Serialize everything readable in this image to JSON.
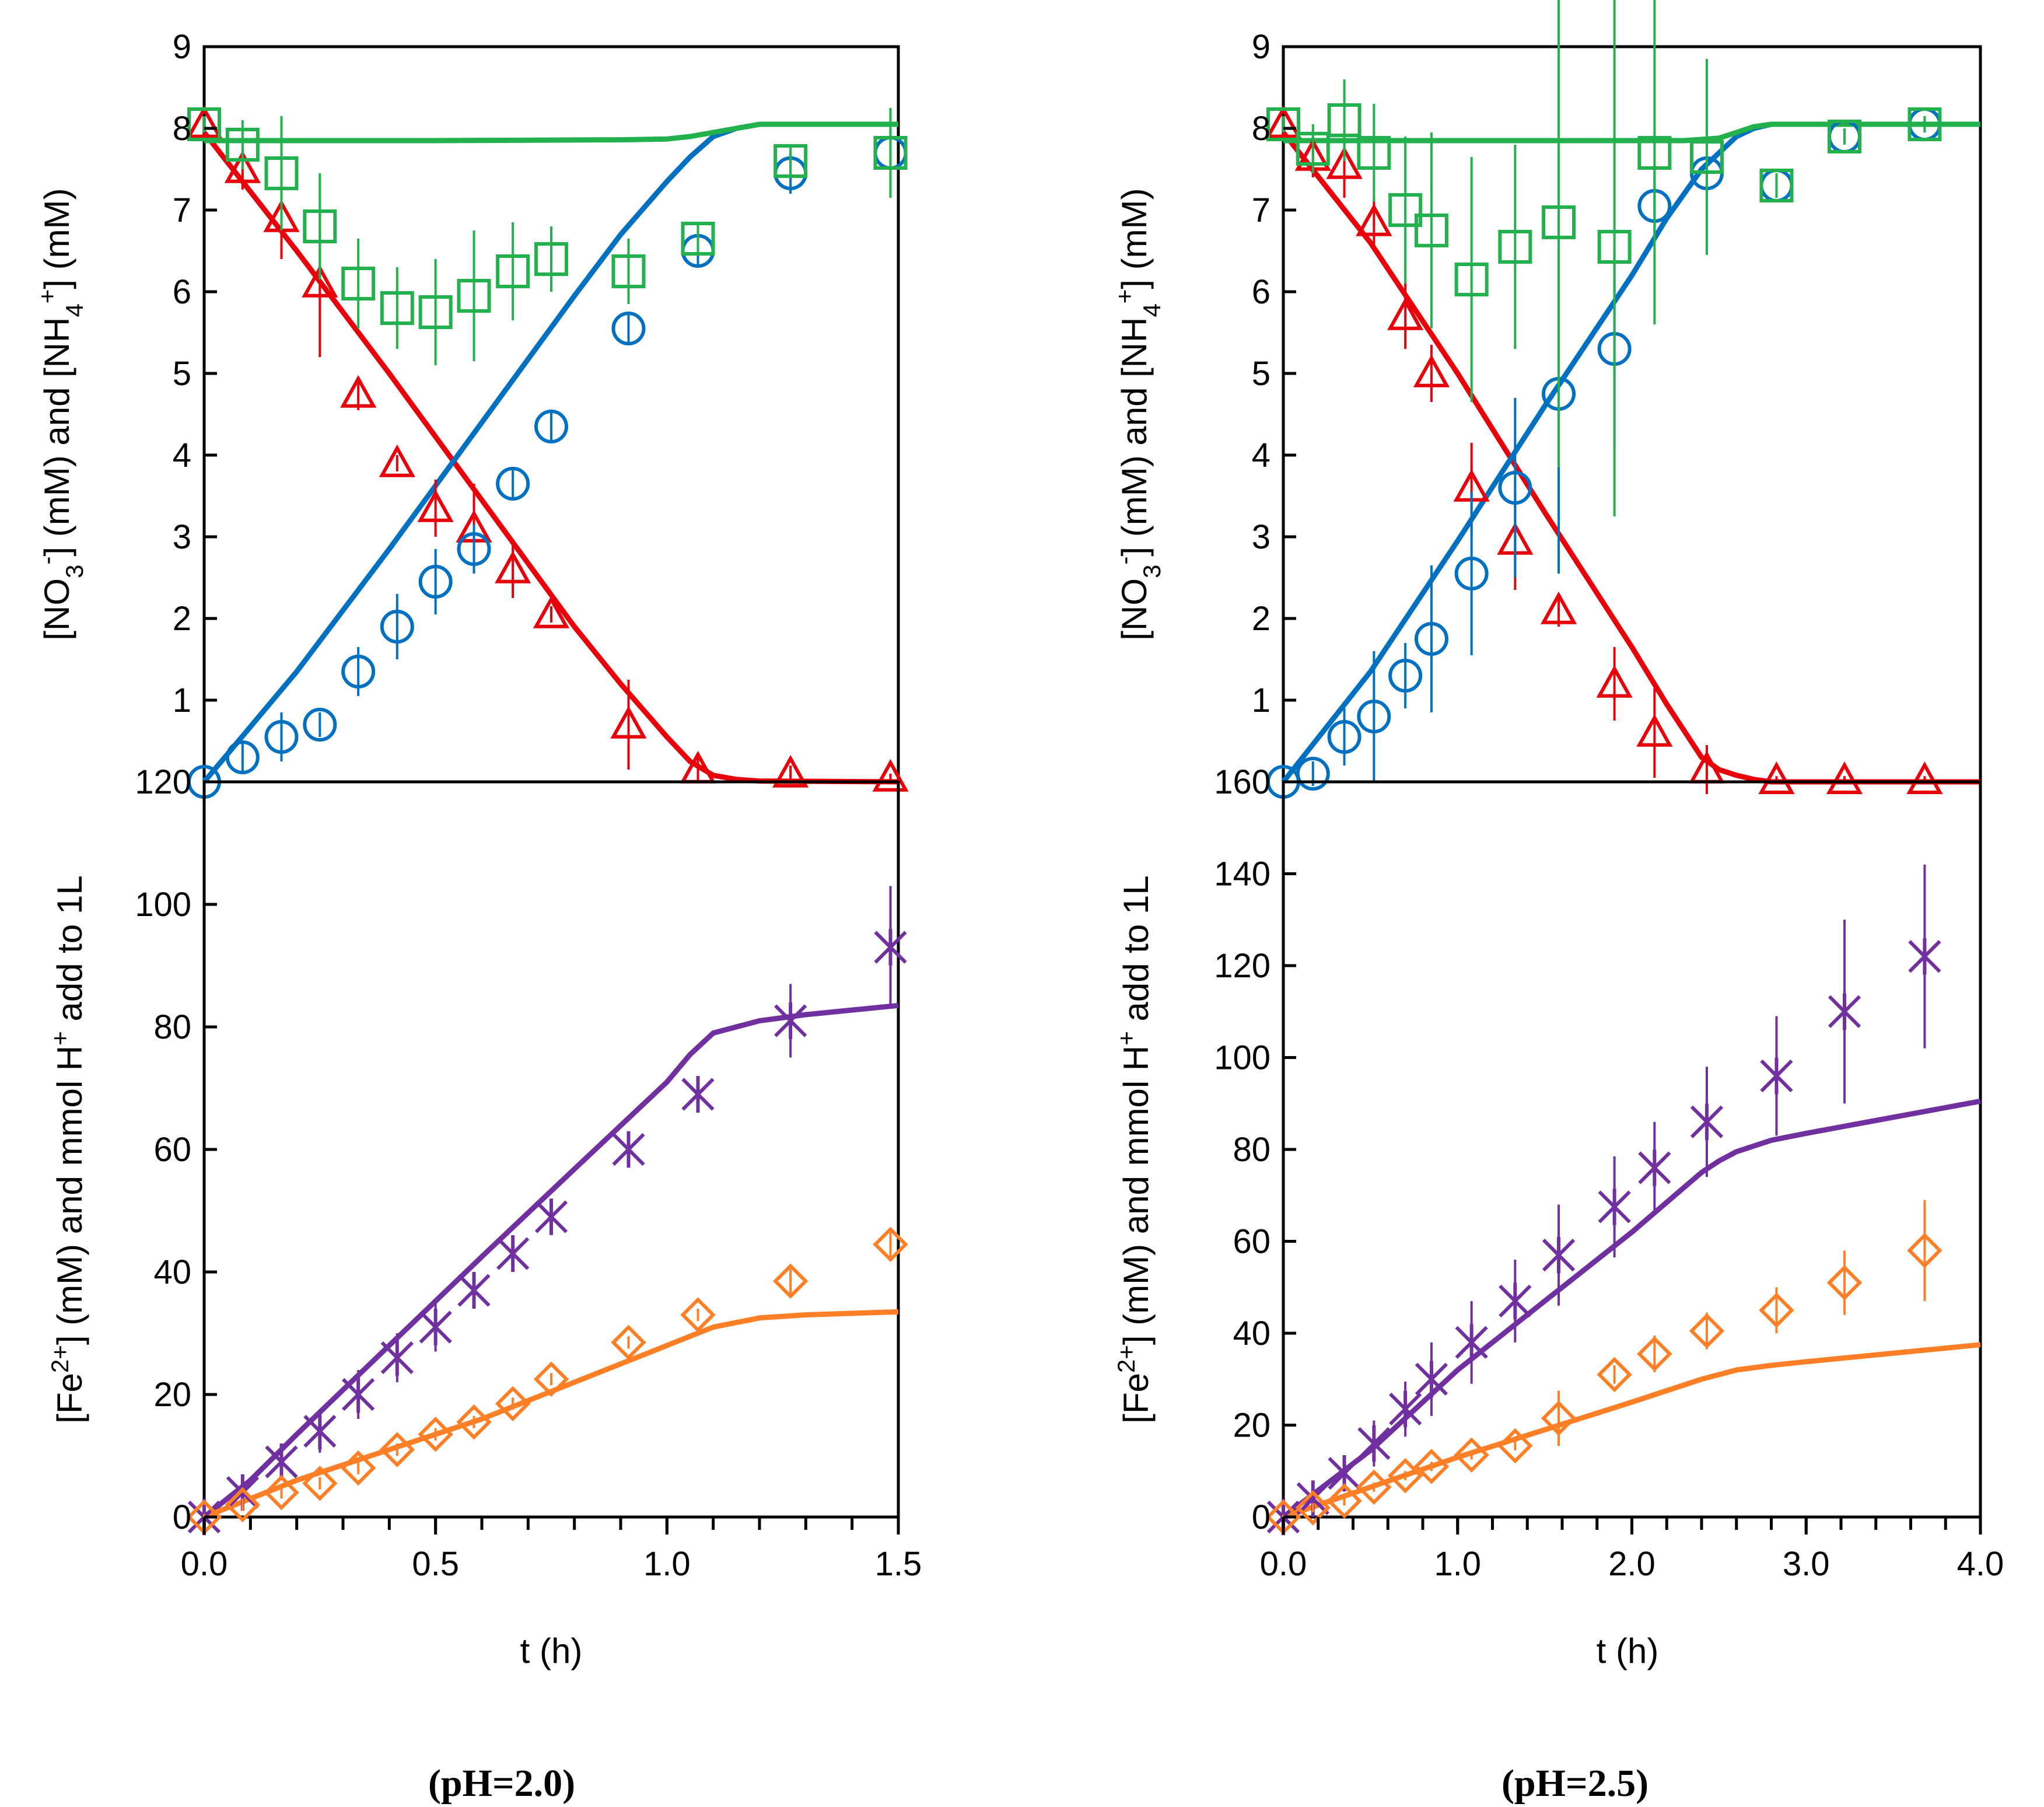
{
  "chart_data": [
    {
      "id": "left-top",
      "type": "scatter",
      "panel": "pH=2.0 nitrate and ammonium",
      "ylabel": {
        "pre": "[NO",
        "sub1": "3",
        "sup1": "-",
        "mid": "] (mM) and [NH",
        "sub2": "4",
        "sup2": "+",
        "post": "] (mM)"
      },
      "xlim": [
        0,
        1.5
      ],
      "ylim": [
        0,
        9
      ],
      "yticks": [
        1,
        2,
        3,
        4,
        5,
        6,
        7,
        8,
        9
      ],
      "series": [
        {
          "name": "NO3- measured",
          "marker": "triangle",
          "color": "#e8000b",
          "x": [
            0,
            0.083,
            0.167,
            0.25,
            0.333,
            0.417,
            0.5,
            0.583,
            0.667,
            0.75,
            0.917,
            1.067,
            1.267,
            1.483
          ],
          "y": [
            8.05,
            7.5,
            6.9,
            6.1,
            4.75,
            3.9,
            3.35,
            3.1,
            2.6,
            2.05,
            0.7,
            0.15,
            0.1,
            0.05
          ],
          "err": [
            0.1,
            0.25,
            0.5,
            0.9,
            0.2,
            0.1,
            0.35,
            0.55,
            0.35,
            0.1,
            0.55,
            0.15,
            0.1,
            0.05
          ]
        },
        {
          "name": "NH4+ measured",
          "marker": "circle",
          "color": "#0070c0",
          "x": [
            0,
            0.083,
            0.167,
            0.25,
            0.333,
            0.417,
            0.5,
            0.583,
            0.667,
            0.75,
            0.917,
            1.067,
            1.267,
            1.483
          ],
          "y": [
            0,
            0.3,
            0.55,
            0.7,
            1.35,
            1.9,
            2.45,
            2.85,
            3.65,
            4.35,
            5.55,
            6.5,
            7.45,
            7.7
          ],
          "err": [
            0.05,
            0.2,
            0.3,
            0.15,
            0.3,
            0.4,
            0.4,
            0.3,
            0.2,
            0.2,
            0.2,
            0.2,
            0.25,
            0.2
          ]
        },
        {
          "name": "Total N measured",
          "marker": "square",
          "color": "#22b14c",
          "x": [
            0,
            0.083,
            0.167,
            0.25,
            0.333,
            0.417,
            0.5,
            0.583,
            0.667,
            0.75,
            0.917,
            1.067,
            1.267,
            1.483
          ],
          "y": [
            8.05,
            7.8,
            7.45,
            6.8,
            6.1,
            5.8,
            5.75,
            5.95,
            6.25,
            6.4,
            6.25,
            6.65,
            7.6,
            7.7
          ],
          "err": [
            0.1,
            0.3,
            0.7,
            0.65,
            0.55,
            0.5,
            0.65,
            0.8,
            0.6,
            0.4,
            0.4,
            0.2,
            0.2,
            0.55
          ]
        }
      ],
      "model_lines": [
        {
          "name": "NO3- model",
          "color": "#e8000b",
          "x": [
            0,
            0.2,
            0.4,
            0.6,
            0.8,
            0.9,
            1.0,
            1.05,
            1.1,
            1.15,
            1.2,
            1.5
          ],
          "y": [
            7.95,
            6.5,
            5.0,
            3.45,
            1.9,
            1.2,
            0.55,
            0.25,
            0.08,
            0.03,
            0.01,
            0.0
          ]
        },
        {
          "name": "NH4+ model",
          "color": "#0070c0",
          "x": [
            0,
            0.2,
            0.4,
            0.6,
            0.8,
            0.9,
            1.0,
            1.05,
            1.1,
            1.15,
            1.2,
            1.5
          ],
          "y": [
            0.0,
            1.35,
            2.85,
            4.4,
            5.95,
            6.7,
            7.35,
            7.65,
            7.9,
            8.0,
            8.05,
            8.05
          ]
        },
        {
          "name": "Total N model",
          "color": "#22b14c",
          "x": [
            0,
            0.5,
            0.9,
            1.0,
            1.05,
            1.1,
            1.15,
            1.2,
            1.3,
            1.5
          ],
          "y": [
            7.85,
            7.85,
            7.86,
            7.87,
            7.9,
            7.95,
            8.0,
            8.05,
            8.05,
            8.05
          ]
        }
      ]
    },
    {
      "id": "left-bottom",
      "type": "scatter",
      "panel": "pH=2.0 iron and acid",
      "ylabel": {
        "pre": "[Fe",
        "sup1": "2+",
        "mid": "] (mM) and mmol H",
        "sup2": "+",
        "post": " add to 1L"
      },
      "xlabel": "t (h)",
      "caption": "(pH=2.0)",
      "xlim": [
        0,
        1.5
      ],
      "ylim": [
        0,
        120
      ],
      "xticks": [
        0,
        0.5,
        1.0,
        1.5
      ],
      "xticklabels": [
        "0.0",
        "0.5",
        "1.0",
        "1.5"
      ],
      "yticks": [
        0,
        20,
        40,
        60,
        80,
        100,
        120
      ],
      "series": [
        {
          "name": "H+ added measured",
          "marker": "star",
          "color": "#7030a0",
          "x": [
            0,
            0.083,
            0.167,
            0.25,
            0.333,
            0.417,
            0.5,
            0.583,
            0.667,
            0.75,
            0.917,
            1.067,
            1.267,
            1.483
          ],
          "y": [
            0,
            4,
            9,
            14,
            20,
            26,
            31,
            37,
            43,
            49,
            60,
            69,
            81,
            93
          ],
          "err": [
            1,
            2,
            3,
            3.5,
            4,
            4,
            4,
            3,
            3,
            2,
            2,
            3,
            6,
            10
          ]
        },
        {
          "name": "Fe2+ measured",
          "marker": "diamond",
          "color": "#ff7f27",
          "x": [
            0,
            0.083,
            0.167,
            0.25,
            0.333,
            0.417,
            0.5,
            0.583,
            0.667,
            0.75,
            0.917,
            1.067,
            1.267,
            1.483
          ],
          "y": [
            0,
            2,
            4,
            5.5,
            8,
            11,
            13.5,
            15.5,
            18.5,
            22.5,
            28.5,
            33,
            38.5,
            44.5
          ],
          "err": [
            0.5,
            1,
            1,
            1,
            1,
            1,
            1,
            1,
            1,
            1,
            1,
            1,
            2,
            2
          ]
        }
      ],
      "model_lines": [
        {
          "name": "H+ model",
          "color": "#7030a0",
          "x": [
            0,
            0.1,
            0.2,
            0.4,
            0.6,
            0.8,
            1.0,
            1.05,
            1.1,
            1.2,
            1.3,
            1.5
          ],
          "y": [
            0,
            6,
            13.5,
            28,
            42.5,
            56.8,
            71,
            75.5,
            79,
            81,
            82,
            83.5
          ]
        },
        {
          "name": "Fe2+ model",
          "color": "#ff7f27",
          "x": [
            0,
            0.1,
            0.2,
            0.4,
            0.6,
            0.8,
            1.0,
            1.1,
            1.2,
            1.3,
            1.5
          ],
          "y": [
            0,
            3,
            6,
            11,
            16,
            22,
            28,
            31,
            32.5,
            33,
            33.5
          ]
        }
      ]
    },
    {
      "id": "right-top",
      "type": "scatter",
      "panel": "pH=2.5 nitrate and ammonium",
      "ylabel": {
        "pre": "[NO",
        "sub1": "3",
        "sup1": "-",
        "mid": "] (mM) and [NH",
        "sub2": "4",
        "sup2": "+",
        "post": "] (mM)"
      },
      "xlim": [
        0,
        4.0
      ],
      "ylim": [
        0,
        9
      ],
      "yticks": [
        1,
        2,
        3,
        4,
        5,
        6,
        7,
        8,
        9
      ],
      "series": [
        {
          "name": "NO3- measured",
          "marker": "triangle",
          "color": "#e8000b",
          "x": [
            0,
            0.17,
            0.35,
            0.52,
            0.7,
            0.85,
            1.08,
            1.33,
            1.58,
            1.9,
            2.13,
            2.43,
            2.83,
            3.22,
            3.68
          ],
          "y": [
            8.05,
            7.65,
            7.55,
            6.85,
            5.7,
            5.0,
            3.6,
            2.95,
            2.1,
            1.2,
            0.6,
            0.15,
            0.02,
            0.02,
            0.02
          ],
          "err": [
            0.1,
            0.25,
            0.4,
            0.3,
            0.4,
            0.35,
            0.55,
            0.6,
            0.2,
            0.45,
            0.55,
            0.3,
            0.05,
            0.05,
            0.05
          ]
        },
        {
          "name": "NH4+ measured",
          "marker": "circle",
          "color": "#0070c0",
          "x": [
            0,
            0.17,
            0.35,
            0.52,
            0.7,
            0.85,
            1.08,
            1.33,
            1.58,
            1.9,
            2.13,
            2.43,
            2.83,
            3.22,
            3.68
          ],
          "y": [
            0,
            0.1,
            0.55,
            0.8,
            1.3,
            1.75,
            2.55,
            3.6,
            4.75,
            5.3,
            7.05,
            7.45,
            7.3,
            7.9,
            8.05
          ],
          "err": [
            0.05,
            0.15,
            0.35,
            0.8,
            0.4,
            0.9,
            1.0,
            1.1,
            2.2,
            1.2,
            0.4,
            0.3,
            0.15,
            0.1,
            0.1
          ]
        },
        {
          "name": "Total N measured",
          "marker": "square",
          "color": "#22b14c",
          "x": [
            0,
            0.17,
            0.35,
            0.52,
            0.7,
            0.85,
            1.08,
            1.33,
            1.58,
            1.9,
            2.13,
            2.43,
            2.83,
            3.22,
            3.68
          ],
          "y": [
            8.05,
            7.75,
            8.1,
            7.7,
            7.0,
            6.75,
            6.15,
            6.55,
            6.85,
            6.55,
            7.7,
            7.65,
            7.3,
            7.9,
            8.05
          ],
          "err": [
            0.1,
            0.3,
            0.5,
            0.6,
            0.9,
            1.2,
            1.5,
            1.25,
            3.0,
            3.3,
            2.1,
            1.2,
            0.15,
            0.1,
            0.1
          ]
        }
      ],
      "model_lines": [
        {
          "name": "NO3- model",
          "color": "#e8000b",
          "x": [
            0,
            0.5,
            1.0,
            1.5,
            2.0,
            2.2,
            2.4,
            2.5,
            2.6,
            2.7,
            2.8,
            4.0
          ],
          "y": [
            7.95,
            6.6,
            5.0,
            3.3,
            1.65,
            0.95,
            0.3,
            0.15,
            0.08,
            0.03,
            0.0,
            0.0
          ]
        },
        {
          "name": "NH4+ model",
          "color": "#0070c0",
          "x": [
            0,
            0.5,
            1.0,
            1.5,
            2.0,
            2.2,
            2.4,
            2.5,
            2.6,
            2.7,
            2.8,
            4.0
          ],
          "y": [
            0.0,
            1.35,
            2.95,
            4.6,
            6.2,
            6.9,
            7.5,
            7.7,
            7.9,
            8.0,
            8.05,
            8.05
          ]
        },
        {
          "name": "Total N model",
          "color": "#22b14c",
          "x": [
            0,
            1.0,
            2.0,
            2.3,
            2.5,
            2.6,
            2.7,
            2.8,
            3.0,
            4.0
          ],
          "y": [
            7.85,
            7.85,
            7.85,
            7.85,
            7.88,
            7.95,
            8.02,
            8.05,
            8.05,
            8.05
          ]
        }
      ]
    },
    {
      "id": "right-bottom",
      "type": "scatter",
      "panel": "pH=2.5 iron and acid",
      "ylabel": {
        "pre": "[Fe",
        "sup1": "2+",
        "mid": "] (mM) and mmol H",
        "sup2": "+",
        "post": " add to 1L"
      },
      "xlabel": "t (h)",
      "caption": "(pH=2.5)",
      "xlim": [
        0,
        4.0
      ],
      "ylim": [
        0,
        160
      ],
      "xticks": [
        0,
        1.0,
        2.0,
        3.0,
        4.0
      ],
      "xticklabels": [
        "0.0",
        "1.0",
        "2.0",
        "3.0",
        "4.0"
      ],
      "yticks": [
        0,
        20,
        40,
        60,
        80,
        100,
        120,
        140,
        160
      ],
      "series": [
        {
          "name": "H+ added measured",
          "marker": "star",
          "color": "#7030a0",
          "x": [
            0,
            0.17,
            0.35,
            0.52,
            0.7,
            0.85,
            1.08,
            1.33,
            1.58,
            1.9,
            2.13,
            2.43,
            2.83,
            3.22,
            3.68
          ],
          "y": [
            0,
            4,
            9.5,
            16,
            23.5,
            30,
            38,
            47,
            57,
            67.5,
            76,
            86,
            96,
            110,
            122
          ],
          "err": [
            1,
            2,
            3,
            5,
            6,
            8,
            9,
            9,
            11,
            11,
            10,
            12,
            13,
            20,
            20
          ]
        },
        {
          "name": "Fe2+ measured",
          "marker": "diamond",
          "color": "#ff7f27",
          "x": [
            0,
            0.17,
            0.35,
            0.52,
            0.7,
            0.85,
            1.08,
            1.33,
            1.58,
            1.9,
            2.13,
            2.43,
            2.83,
            3.22,
            3.68
          ],
          "y": [
            0,
            2,
            3.5,
            6.5,
            9,
            11,
            13.5,
            15.5,
            21.5,
            31,
            35.5,
            40.5,
            45,
            51,
            58
          ],
          "err": [
            0.5,
            1,
            1,
            1,
            1,
            1,
            1,
            1,
            6,
            2,
            4,
            4,
            5,
            7,
            11
          ]
        }
      ],
      "model_lines": [
        {
          "name": "H+ model",
          "color": "#7030a0",
          "x": [
            0,
            0.5,
            1.0,
            1.5,
            2.0,
            2.4,
            2.5,
            2.6,
            2.8,
            3.0,
            4.0
          ],
          "y": [
            0,
            14.5,
            32,
            47,
            62,
            75,
            77.5,
            79.5,
            82,
            83.5,
            90.5
          ]
        },
        {
          "name": "Fe2+ model",
          "color": "#ff7f27",
          "x": [
            0,
            0.5,
            1.0,
            1.5,
            2.0,
            2.4,
            2.6,
            2.8,
            3.0,
            4.0
          ],
          "y": [
            0,
            6.5,
            13,
            19,
            25,
            30,
            32,
            33,
            33.8,
            37.5
          ]
        }
      ]
    }
  ]
}
